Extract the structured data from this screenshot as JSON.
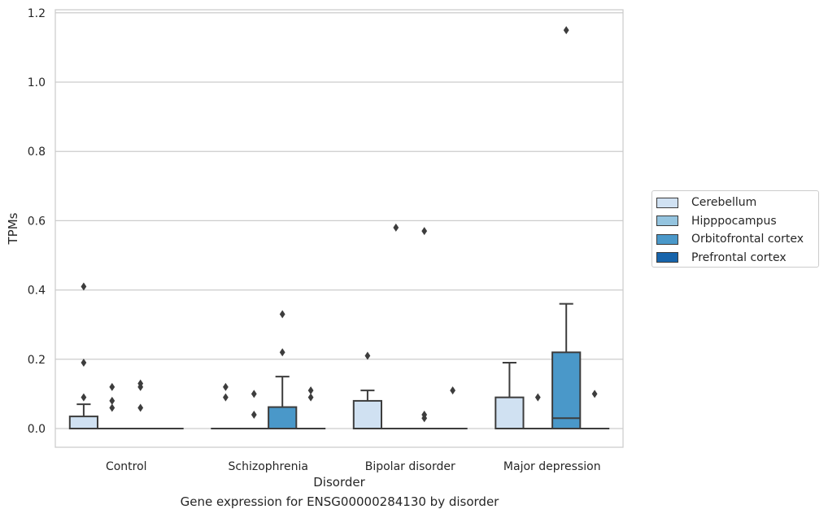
{
  "chart_data": {
    "type": "box",
    "xlabel": "Disorder",
    "ylabel": "TPMs",
    "caption": "Gene expression for ENSG00000284130 by disorder",
    "categories": [
      "Control",
      "Schizophrenia",
      "Bipolar disorder",
      "Major depression"
    ],
    "ylim": [
      -0.055,
      1.21
    ],
    "yticks": [
      "0.0",
      "0.2",
      "0.4",
      "0.6",
      "0.8",
      "1.0",
      "1.2"
    ],
    "ytick_values": [
      0.0,
      0.2,
      0.4,
      0.6,
      0.8,
      1.0,
      1.2
    ],
    "grid": true,
    "legend_placement": "center-right outside",
    "series": [
      {
        "name": "Cerebellum",
        "color": "#d0e1f2",
        "boxes": [
          {
            "q1": 0.0,
            "median": 0.0,
            "q3": 0.035,
            "whisker_low": 0.0,
            "whisker_high": 0.07,
            "outliers": [
              0.09,
              0.19,
              0.41
            ]
          },
          {
            "q1": 0.0,
            "median": 0.0,
            "q3": 0.0,
            "whisker_low": 0.0,
            "whisker_high": 0.0,
            "outliers": [
              0.09,
              0.12
            ]
          },
          {
            "q1": 0.0,
            "median": 0.0,
            "q3": 0.08,
            "whisker_low": 0.0,
            "whisker_high": 0.11,
            "outliers": [
              0.21
            ]
          },
          {
            "q1": 0.0,
            "median": 0.0,
            "q3": 0.09,
            "whisker_low": 0.0,
            "whisker_high": 0.19,
            "outliers": []
          }
        ]
      },
      {
        "name": "Hipppocampus",
        "color": "#94c4df",
        "boxes": [
          {
            "q1": 0.0,
            "median": 0.0,
            "q3": 0.0,
            "whisker_low": 0.0,
            "whisker_high": 0.0,
            "outliers": [
              0.06,
              0.08,
              0.12
            ]
          },
          {
            "q1": 0.0,
            "median": 0.0,
            "q3": 0.0,
            "whisker_low": 0.0,
            "whisker_high": 0.0,
            "outliers": [
              0.04,
              0.1
            ]
          },
          {
            "q1": 0.0,
            "median": 0.0,
            "q3": 0.0,
            "whisker_low": 0.0,
            "whisker_high": 0.0,
            "outliers": [
              0.58
            ]
          },
          {
            "q1": 0.0,
            "median": 0.0,
            "q3": 0.0,
            "whisker_low": 0.0,
            "whisker_high": 0.0,
            "outliers": [
              0.09
            ]
          }
        ]
      },
      {
        "name": "Orbitofrontal cortex",
        "color": "#4a98c9",
        "boxes": [
          {
            "q1": 0.0,
            "median": 0.0,
            "q3": 0.0,
            "whisker_low": 0.0,
            "whisker_high": 0.0,
            "outliers": [
              0.06,
              0.12,
              0.13
            ]
          },
          {
            "q1": 0.0,
            "median": 0.0,
            "q3": 0.062,
            "whisker_low": 0.0,
            "whisker_high": 0.15,
            "outliers": [
              0.22,
              0.33
            ]
          },
          {
            "q1": 0.0,
            "median": 0.0,
            "q3": 0.0,
            "whisker_low": 0.0,
            "whisker_high": 0.0,
            "outliers": [
              0.03,
              0.04,
              0.57
            ]
          },
          {
            "q1": 0.0,
            "median": 0.03,
            "q3": 0.22,
            "whisker_low": 0.0,
            "whisker_high": 0.36,
            "outliers": [
              1.15
            ]
          }
        ]
      },
      {
        "name": "Prefrontal cortex",
        "color": "#1764ab",
        "boxes": [
          {
            "q1": 0.0,
            "median": 0.0,
            "q3": 0.0,
            "whisker_low": 0.0,
            "whisker_high": 0.0,
            "outliers": []
          },
          {
            "q1": 0.0,
            "median": 0.0,
            "q3": 0.0,
            "whisker_low": 0.0,
            "whisker_high": 0.0,
            "outliers": [
              0.09,
              0.11
            ]
          },
          {
            "q1": 0.0,
            "median": 0.0,
            "q3": 0.0,
            "whisker_low": 0.0,
            "whisker_high": 0.0,
            "outliers": [
              0.11
            ]
          },
          {
            "q1": 0.0,
            "median": 0.0,
            "q3": 0.0,
            "whisker_low": 0.0,
            "whisker_high": 0.0,
            "outliers": [
              0.1
            ]
          }
        ]
      }
    ]
  }
}
